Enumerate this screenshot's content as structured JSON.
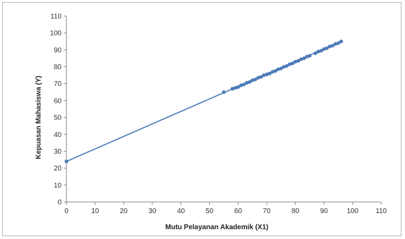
{
  "chart_data": {
    "type": "scatter",
    "title": "",
    "xlabel": "Mutu Pelayanan Akademik (X1)",
    "ylabel": "Kepuasan Mahasiswa (Y)",
    "xlim": [
      0,
      110
    ],
    "ylim": [
      0,
      110
    ],
    "xticks": [
      0,
      10,
      20,
      30,
      40,
      50,
      60,
      70,
      80,
      90,
      100,
      110
    ],
    "yticks": [
      0,
      10,
      20,
      30,
      40,
      50,
      60,
      70,
      80,
      90,
      100,
      110
    ],
    "grid": false,
    "legend": "none",
    "series_color": "#4a7ab8",
    "trendline": {
      "from": [
        0,
        24
      ],
      "to": [
        96,
        95
      ]
    },
    "points": [
      [
        0,
        24
      ],
      [
        55,
        65
      ],
      [
        58,
        67
      ],
      [
        59,
        67.5
      ],
      [
        60,
        68
      ],
      [
        61,
        69
      ],
      [
        62,
        69.5
      ],
      [
        63,
        70.5
      ],
      [
        64,
        71
      ],
      [
        65,
        72
      ],
      [
        66,
        72.5
      ],
      [
        67,
        73.5
      ],
      [
        68,
        74
      ],
      [
        69,
        75
      ],
      [
        70,
        75.5
      ],
      [
        71,
        76
      ],
      [
        72,
        77
      ],
      [
        73,
        77.5
      ],
      [
        74,
        78.5
      ],
      [
        75,
        79
      ],
      [
        76,
        80
      ],
      [
        77,
        80.5
      ],
      [
        78,
        81.5
      ],
      [
        79,
        82
      ],
      [
        80,
        83
      ],
      [
        81,
        83.5
      ],
      [
        82,
        84.5
      ],
      [
        83,
        85
      ],
      [
        84,
        86
      ],
      [
        85,
        86.5
      ],
      [
        87,
        88
      ],
      [
        88,
        89
      ],
      [
        89,
        89.5
      ],
      [
        90,
        90.5
      ],
      [
        91,
        91
      ],
      [
        92,
        92
      ],
      [
        93,
        92.5
      ],
      [
        94,
        93.5
      ],
      [
        95,
        94
      ],
      [
        96,
        95
      ]
    ]
  }
}
